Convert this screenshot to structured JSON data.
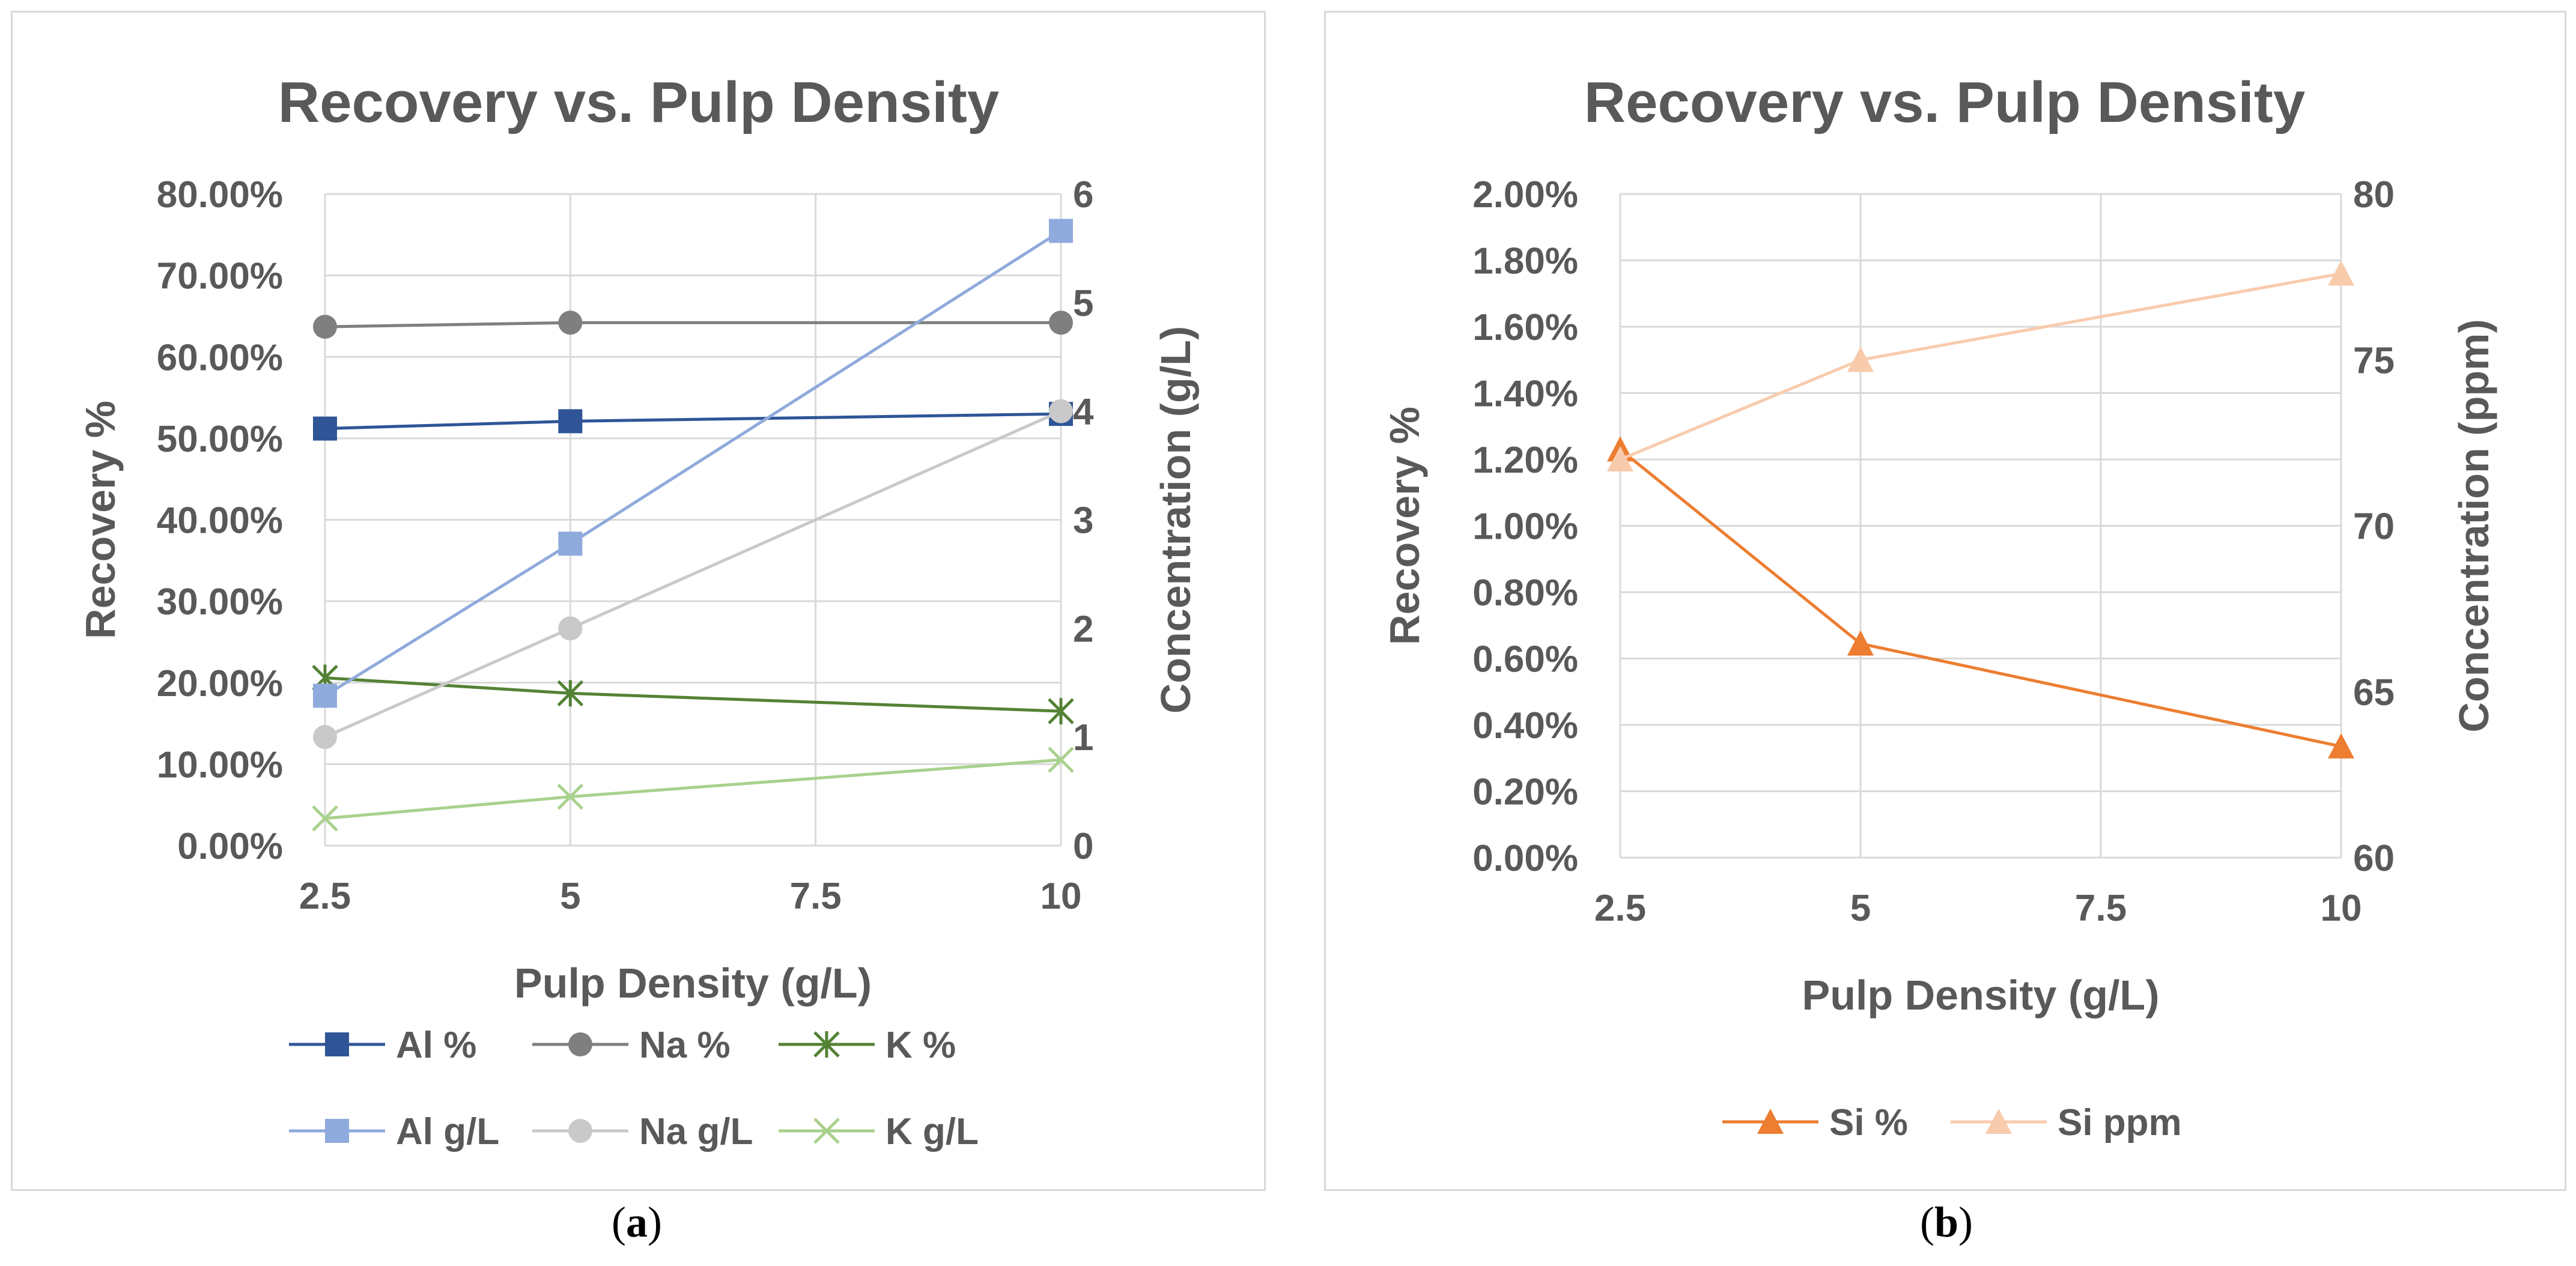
{
  "chart_data": [
    {
      "type": "line",
      "title": "Recovery vs. Pulp Density",
      "xlabel": "Pulp Density (g/L)",
      "ylabel": "Recovery %",
      "y2label": "Concentration (g/L)",
      "x_ticks": [
        "2.5",
        "5",
        "7.5",
        "10"
      ],
      "x_range": [
        2.5,
        10
      ],
      "ylim": [
        0,
        80
      ],
      "y_ticks": [
        "0.00%",
        "10.00%",
        "20.00%",
        "30.00%",
        "40.00%",
        "50.00%",
        "60.00%",
        "70.00%",
        "80.00%"
      ],
      "y2lim": [
        0,
        6
      ],
      "y2_ticks": [
        "0",
        "1",
        "2",
        "3",
        "4",
        "5",
        "6"
      ],
      "grid": true,
      "legend_position": "bottom",
      "series": [
        {
          "name": "Al %",
          "axis": "left",
          "x": [
            2.5,
            5,
            10
          ],
          "values": [
            51.2,
            52.1,
            53.0
          ],
          "color": "#2f5597",
          "marker": "square"
        },
        {
          "name": "Na %",
          "axis": "left",
          "x": [
            2.5,
            5,
            10
          ],
          "values": [
            63.7,
            64.2,
            64.2
          ],
          "color": "#7f7f7f",
          "marker": "circle"
        },
        {
          "name": "K %",
          "axis": "left",
          "x": [
            2.5,
            5,
            10
          ],
          "values": [
            20.6,
            18.7,
            16.5
          ],
          "color": "#548235",
          "marker": "star"
        },
        {
          "name": "Al g/L",
          "axis": "right",
          "x": [
            2.5,
            5,
            10
          ],
          "values": [
            1.38,
            2.78,
            5.66
          ],
          "color": "#8faadc",
          "marker": "square"
        },
        {
          "name": "Na g/L",
          "axis": "right",
          "x": [
            2.5,
            5,
            10
          ],
          "values": [
            1.0,
            2.0,
            4.0
          ],
          "color": "#c9c9c9",
          "marker": "circle"
        },
        {
          "name": "K g/L",
          "axis": "right",
          "x": [
            2.5,
            5,
            10
          ],
          "values": [
            0.25,
            0.45,
            0.79
          ],
          "color": "#a9d18e",
          "marker": "cross"
        }
      ]
    },
    {
      "type": "line",
      "title": "Recovery vs. Pulp Density",
      "xlabel": "Pulp Density (g/L)",
      "ylabel": "Recovery %",
      "y2label": "Concentration (ppm)",
      "x_ticks": [
        "2.5",
        "5",
        "7.5",
        "10"
      ],
      "x_range": [
        2.5,
        10
      ],
      "ylim": [
        0,
        2
      ],
      "y_ticks": [
        "0.00%",
        "0.20%",
        "0.40%",
        "0.60%",
        "0.80%",
        "1.00%",
        "1.20%",
        "1.40%",
        "1.60%",
        "1.80%",
        "2.00%"
      ],
      "y2lim": [
        60,
        80
      ],
      "y2_ticks": [
        "60",
        "65",
        "70",
        "75",
        "80"
      ],
      "grid": true,
      "legend_position": "bottom",
      "series": [
        {
          "name": "Si %",
          "axis": "left",
          "x": [
            2.5,
            5,
            10
          ],
          "values": [
            1.23,
            0.645,
            0.335
          ],
          "color": "#ed7d31",
          "marker": "triangle"
        },
        {
          "name": "Si ppm",
          "axis": "right",
          "x": [
            2.5,
            5,
            10
          ],
          "values": [
            72.0,
            75.0,
            77.6
          ],
          "color": "#f8cbad",
          "marker": "triangle"
        }
      ]
    }
  ],
  "captions": [
    "a",
    "b"
  ]
}
